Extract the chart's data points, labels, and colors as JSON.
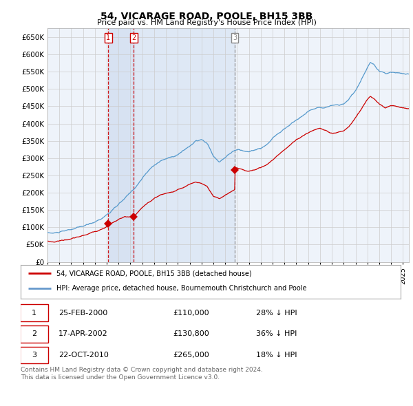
{
  "title": "54, VICARAGE ROAD, POOLE, BH15 3BB",
  "subtitle": "Price paid vs. HM Land Registry's House Price Index (HPI)",
  "ylabel_ticks": [
    "£0",
    "£50K",
    "£100K",
    "£150K",
    "£200K",
    "£250K",
    "£300K",
    "£350K",
    "£400K",
    "£450K",
    "£500K",
    "£550K",
    "£600K",
    "£650K"
  ],
  "ytick_values": [
    0,
    50000,
    100000,
    150000,
    200000,
    250000,
    300000,
    350000,
    400000,
    450000,
    500000,
    550000,
    600000,
    650000
  ],
  "sales": [
    {
      "date_num": 2000.14,
      "price": 110000,
      "label": "1"
    },
    {
      "date_num": 2002.29,
      "price": 130800,
      "label": "2"
    },
    {
      "date_num": 2010.81,
      "price": 265000,
      "label": "3"
    }
  ],
  "table_rows": [
    {
      "num": "1",
      "date": "25-FEB-2000",
      "price": "£110,000",
      "pct": "28% ↓ HPI"
    },
    {
      "num": "2",
      "date": "17-APR-2002",
      "price": "£130,800",
      "pct": "36% ↓ HPI"
    },
    {
      "num": "3",
      "date": "22-OCT-2010",
      "price": "£265,000",
      "pct": "18% ↓ HPI"
    }
  ],
  "legend_entries": [
    {
      "label": "54, VICARAGE ROAD, POOLE, BH15 3BB (detached house)",
      "color": "#cc0000"
    },
    {
      "label": "HPI: Average price, detached house, Bournemouth Christchurch and Poole",
      "color": "#6699cc"
    }
  ],
  "footnote": "Contains HM Land Registry data © Crown copyright and database right 2024.\nThis data is licensed under the Open Government Licence v3.0.",
  "xmin": 1995.0,
  "xmax": 2025.5,
  "ymin": 0,
  "ymax": 675000,
  "sale_color": "#cc0000",
  "hpi_color": "#5599cc",
  "hpi_fill_color": "#ddeeff",
  "grid_color": "#cccccc",
  "bg_color": "#ffffff",
  "plot_bg": "#eef3fa"
}
